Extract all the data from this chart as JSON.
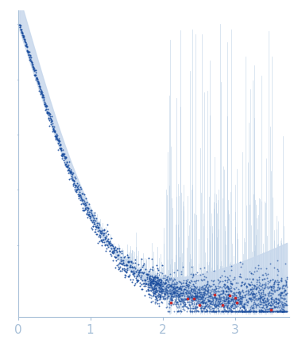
{
  "xlim": [
    0,
    3.75
  ],
  "x_ticks": [
    0,
    1,
    2,
    3
  ],
  "axis_color": "#a8c0d8",
  "dot_color_blue": "#1a4d9e",
  "dot_color_red": "#cc2222",
  "error_band_color": "#c8d8ec",
  "error_spike_color": "#aac4de",
  "background_color": "#ffffff",
  "seed": 42
}
